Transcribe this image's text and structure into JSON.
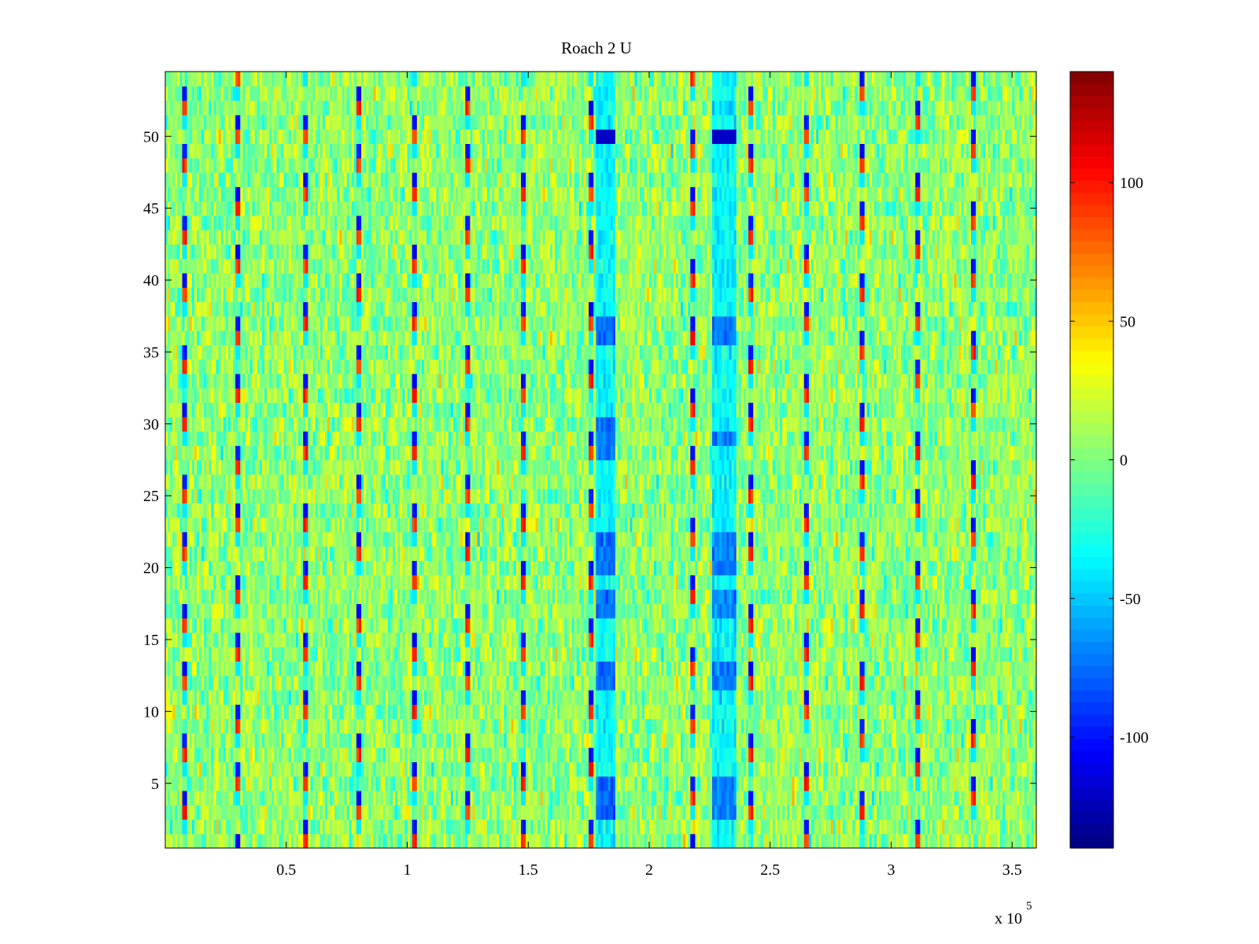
{
  "chart_data": {
    "type": "heatmap",
    "title": "Roach 2 U",
    "xlabel": "",
    "ylabel": "",
    "xlim": [
      0,
      360000
    ],
    "ylim": [
      0.5,
      54.5
    ],
    "x_ticks": [
      50000,
      100000,
      150000,
      200000,
      250000,
      300000,
      350000
    ],
    "x_tick_labels": [
      "0.5",
      "1",
      "1.5",
      "2",
      "2.5",
      "3",
      "3.5"
    ],
    "x_exponent_label": "x 10",
    "x_exponent_power": "5",
    "y_ticks": [
      5,
      10,
      15,
      20,
      25,
      30,
      35,
      40,
      45,
      50
    ],
    "y_tick_labels": [
      "5",
      "10",
      "15",
      "20",
      "25",
      "30",
      "35",
      "40",
      "45",
      "50"
    ],
    "rows": 54,
    "colormap": "jet",
    "clim": [
      -140,
      140
    ],
    "colorbar_ticks": [
      100,
      50,
      0,
      -50,
      -100
    ],
    "colorbar_tick_labels": [
      "100",
      "50",
      "0",
      "-50",
      "-100"
    ],
    "noise_mean": 5,
    "noise_sd": 18,
    "periodic_spike_columns_x": [
      8000,
      30000,
      58000,
      80000,
      103000,
      125000,
      148000,
      176000,
      218000,
      242000,
      265000,
      288000,
      311000,
      334000
    ],
    "anomaly_bands": [
      {
        "x_start": 178000,
        "x_end": 186000,
        "strong_rows": [
          3,
          4,
          5,
          12,
          13,
          17,
          18,
          20,
          21,
          22,
          28,
          29,
          30,
          36,
          37,
          50
        ],
        "peak_row": 50,
        "peak_value": -120,
        "band_value": -75
      },
      {
        "x_start": 226000,
        "x_end": 236000,
        "strong_rows": [
          3,
          4,
          5,
          12,
          13,
          17,
          18,
          20,
          21,
          22,
          29,
          36,
          37,
          50
        ],
        "peak_row": 50,
        "peak_value": -120,
        "band_value": -70
      }
    ]
  },
  "colors": {
    "frame": "#000000",
    "background": "#ffffff"
  }
}
